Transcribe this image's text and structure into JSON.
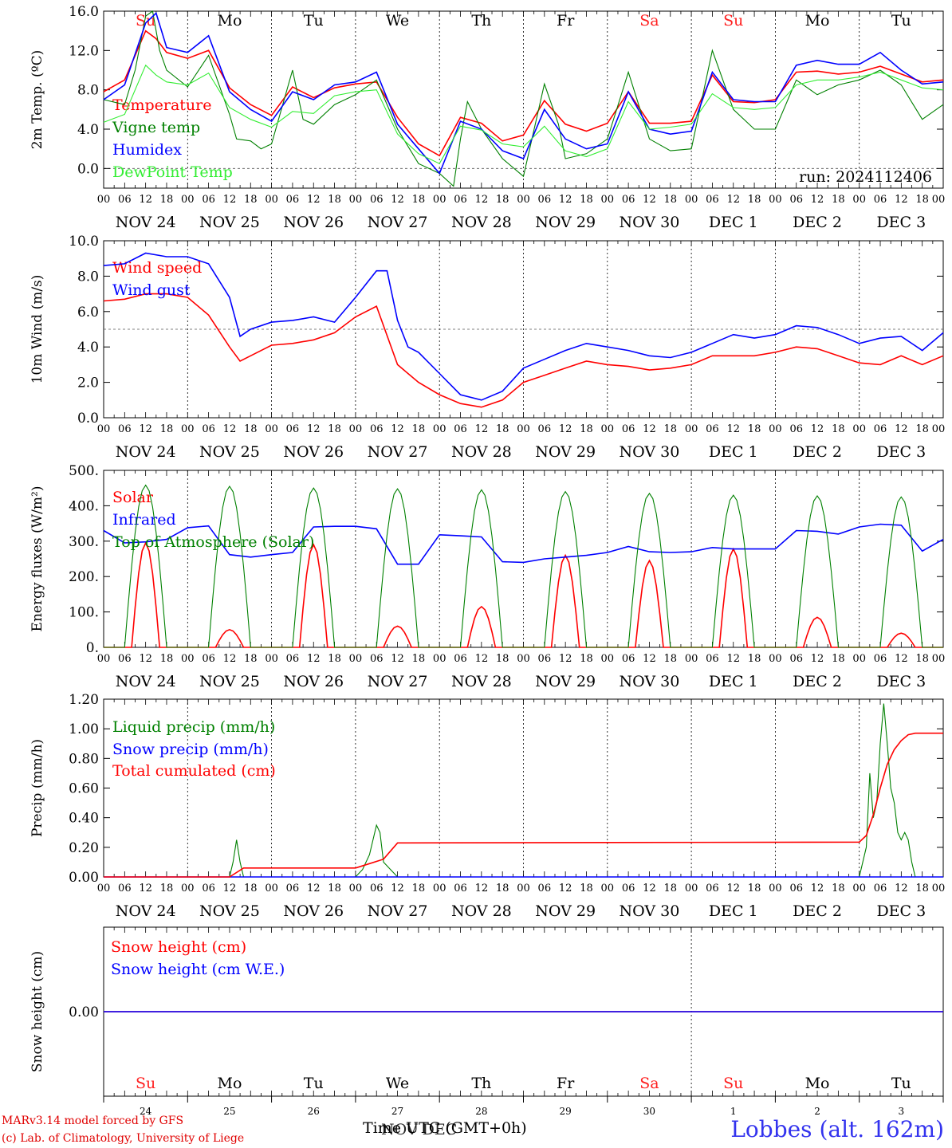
{
  "chart_data": [
    {
      "type": "line",
      "ylabel": "2m Temp. (ºC)",
      "ylim": [
        -2,
        16
      ],
      "yticks": [
        "16.0",
        "12.0",
        "8.0",
        "4.0",
        "0.0"
      ],
      "ytick_values": [
        16,
        12,
        8,
        4,
        0
      ],
      "ref_line": 0,
      "run_label": "run: 2024112406",
      "weekdays": [
        {
          "label": "Su",
          "color": "#ff2020"
        },
        {
          "label": "Mo",
          "color": "#000000"
        },
        {
          "label": "Tu",
          "color": "#000000"
        },
        {
          "label": "We",
          "color": "#000000"
        },
        {
          "label": "Th",
          "color": "#000000"
        },
        {
          "label": "Fr",
          "color": "#000000"
        },
        {
          "label": "Sa",
          "color": "#ff2020"
        },
        {
          "label": "Su",
          "color": "#ff2020"
        },
        {
          "label": "Mo",
          "color": "#000000"
        },
        {
          "label": "Tu",
          "color": "#000000"
        }
      ],
      "series": [
        {
          "name": "Temperature",
          "color": "#ff0000",
          "x": [
            0,
            6,
            12,
            15,
            18,
            24,
            30,
            36,
            42,
            48,
            54,
            60,
            66,
            72,
            78,
            84,
            90,
            96,
            102,
            108,
            114,
            120,
            126,
            132,
            138,
            144,
            150,
            156,
            162,
            168,
            174,
            180,
            186,
            192,
            198,
            204,
            210,
            216,
            222,
            228,
            234,
            240
          ],
          "values": [
            7.8,
            9.0,
            14.0,
            13.2,
            11.8,
            11.2,
            12.0,
            8.2,
            6.5,
            5.4,
            8.3,
            7.2,
            8.2,
            8.6,
            8.8,
            5.2,
            2.5,
            1.3,
            5.2,
            4.6,
            2.8,
            3.4,
            6.9,
            4.5,
            3.8,
            4.6,
            7.8,
            4.6,
            4.6,
            4.8,
            9.5,
            6.8,
            6.7,
            7.0,
            9.8,
            9.9,
            9.6,
            9.8,
            10.4,
            9.6,
            8.8,
            9.0
          ]
        },
        {
          "name": "Vigne temp",
          "color": "#008000",
          "x": [
            0,
            6,
            9,
            12,
            14,
            16,
            18,
            24,
            30,
            36,
            38,
            42,
            45,
            48,
            54,
            57,
            60,
            66,
            72,
            78,
            84,
            90,
            96,
            100,
            102,
            104,
            108,
            114,
            120,
            126,
            130,
            132,
            138,
            144,
            150,
            156,
            162,
            168,
            174,
            180,
            186,
            192,
            198,
            204,
            210,
            216,
            222,
            228,
            234,
            240
          ],
          "values": [
            7.0,
            6.5,
            10.0,
            15.5,
            16.0,
            12.0,
            10.0,
            8.3,
            11.5,
            5.5,
            3.0,
            2.8,
            2.0,
            2.5,
            10.0,
            5.0,
            4.5,
            6.5,
            7.5,
            9.0,
            4.0,
            0.5,
            -0.5,
            -1.8,
            3.0,
            6.8,
            4.0,
            1.0,
            -0.8,
            8.6,
            4.5,
            1.0,
            1.5,
            3.0,
            9.8,
            3.0,
            1.8,
            2.0,
            12.0,
            6.0,
            4.0,
            4.0,
            9.0,
            7.5,
            8.5,
            9.0,
            10.0,
            8.5,
            5.0,
            6.5
          ]
        },
        {
          "name": "Humidex",
          "color": "#0000ff",
          "x": [
            0,
            6,
            12,
            15,
            18,
            24,
            30,
            36,
            42,
            48,
            54,
            60,
            66,
            72,
            78,
            84,
            90,
            96,
            102,
            108,
            114,
            120,
            126,
            132,
            138,
            144,
            150,
            156,
            162,
            168,
            174,
            180,
            186,
            192,
            198,
            204,
            210,
            216,
            222,
            228,
            234,
            240
          ],
          "values": [
            7.0,
            8.5,
            14.8,
            15.8,
            12.3,
            11.8,
            13.5,
            7.8,
            6.0,
            4.8,
            7.8,
            7.0,
            8.5,
            8.8,
            9.8,
            4.5,
            2.0,
            -0.5,
            4.8,
            4.0,
            1.8,
            1.0,
            6.0,
            3.0,
            2.0,
            2.5,
            7.8,
            4.0,
            3.5,
            3.8,
            9.8,
            7.0,
            6.8,
            6.8,
            10.5,
            11.0,
            10.6,
            10.6,
            11.8,
            10.0,
            8.6,
            8.8
          ]
        },
        {
          "name": "DewPoint Temp",
          "color": "#33ee33",
          "x": [
            0,
            6,
            12,
            15,
            18,
            24,
            30,
            36,
            42,
            48,
            54,
            60,
            66,
            72,
            78,
            84,
            90,
            96,
            102,
            108,
            114,
            120,
            126,
            132,
            138,
            144,
            150,
            156,
            162,
            168,
            174,
            180,
            186,
            192,
            198,
            204,
            210,
            216,
            222,
            228,
            234,
            240
          ],
          "values": [
            4.7,
            5.5,
            10.5,
            9.5,
            8.8,
            8.5,
            9.7,
            6.2,
            5.0,
            4.2,
            5.8,
            5.6,
            7.4,
            7.8,
            8.0,
            3.5,
            1.5,
            0.5,
            4.3,
            3.9,
            2.5,
            2.2,
            4.3,
            1.8,
            1.2,
            2.0,
            6.8,
            4.0,
            4.2,
            4.5,
            7.6,
            6.2,
            6.0,
            6.2,
            8.5,
            9.0,
            9.0,
            9.3,
            9.8,
            9.0,
            8.2,
            8.0
          ]
        }
      ]
    },
    {
      "type": "line",
      "ylabel": "10m Wind (m/s)",
      "ylim": [
        0,
        10
      ],
      "yticks": [
        "10.0",
        "8.0",
        "6.0",
        "4.0",
        "2.0",
        "0.0"
      ],
      "ytick_values": [
        10,
        8,
        6,
        4,
        2,
        0
      ],
      "ref_line": 5,
      "series": [
        {
          "name": "Wind speed",
          "color": "#ff0000",
          "x": [
            0,
            6,
            12,
            18,
            24,
            30,
            36,
            39,
            42,
            48,
            54,
            60,
            66,
            72,
            78,
            84,
            87,
            90,
            96,
            102,
            108,
            114,
            120,
            126,
            132,
            138,
            144,
            150,
            156,
            162,
            168,
            174,
            180,
            186,
            192,
            198,
            204,
            210,
            216,
            222,
            228,
            234,
            240
          ],
          "values": [
            6.6,
            6.7,
            7.0,
            7.0,
            6.8,
            5.8,
            4.0,
            3.2,
            3.5,
            4.1,
            4.2,
            4.4,
            4.8,
            5.7,
            6.3,
            3.0,
            2.5,
            2.0,
            1.3,
            0.8,
            0.6,
            1.0,
            2.0,
            2.4,
            2.8,
            3.2,
            3.0,
            2.9,
            2.7,
            2.8,
            3.0,
            3.5,
            3.5,
            3.5,
            3.7,
            4.0,
            3.9,
            3.5,
            3.1,
            3.0,
            3.5,
            3.0,
            3.5
          ]
        },
        {
          "name": "Wind gust",
          "color": "#0000ff",
          "x": [
            0,
            6,
            12,
            18,
            24,
            30,
            36,
            39,
            42,
            48,
            54,
            60,
            66,
            72,
            78,
            81,
            84,
            87,
            90,
            96,
            102,
            108,
            114,
            120,
            126,
            132,
            138,
            144,
            150,
            156,
            162,
            168,
            174,
            180,
            186,
            192,
            198,
            204,
            210,
            216,
            222,
            228,
            234,
            240
          ],
          "values": [
            8.6,
            8.7,
            9.3,
            9.1,
            9.1,
            8.7,
            6.8,
            4.6,
            5.0,
            5.4,
            5.5,
            5.7,
            5.4,
            6.8,
            8.3,
            8.3,
            5.5,
            4.0,
            3.7,
            2.5,
            1.3,
            1.0,
            1.5,
            2.8,
            3.3,
            3.8,
            4.2,
            4.0,
            3.8,
            3.5,
            3.4,
            3.7,
            4.2,
            4.7,
            4.5,
            4.7,
            5.2,
            5.1,
            4.7,
            4.2,
            4.5,
            4.6,
            3.8,
            4.8
          ]
        }
      ]
    },
    {
      "type": "line",
      "ylabel": "Energy fluxes (W/m²)",
      "ylim": [
        0,
        500
      ],
      "yticks": [
        "500.",
        "400.",
        "300.",
        "200.",
        "100.",
        "0."
      ],
      "ytick_values": [
        500,
        400,
        300,
        200,
        100,
        0
      ],
      "series": [
        {
          "name": "Solar",
          "color": "#ff0000",
          "peaks": [
            295,
            50,
            290,
            60,
            115,
            260,
            245,
            278,
            85,
            40
          ]
        },
        {
          "name": "Infrared",
          "color": "#0000ff",
          "x": [
            0,
            6,
            12,
            18,
            24,
            30,
            36,
            42,
            48,
            54,
            60,
            66,
            72,
            78,
            84,
            90,
            96,
            102,
            108,
            114,
            120,
            126,
            132,
            138,
            144,
            150,
            156,
            162,
            168,
            174,
            180,
            186,
            192,
            198,
            204,
            210,
            216,
            222,
            228,
            234,
            240
          ],
          "values": [
            330,
            295,
            298,
            305,
            338,
            343,
            262,
            255,
            262,
            268,
            340,
            342,
            342,
            335,
            235,
            235,
            318,
            315,
            312,
            242,
            240,
            250,
            255,
            260,
            268,
            285,
            270,
            268,
            270,
            282,
            278,
            278,
            278,
            330,
            328,
            320,
            340,
            348,
            345,
            272,
            305
          ]
        },
        {
          "name": "Top of Atmosphere (Solar)",
          "color": "#008000",
          "peaks": [
            458,
            455,
            450,
            448,
            445,
            440,
            435,
            430,
            428,
            425
          ]
        }
      ]
    },
    {
      "type": "line",
      "ylabel": "Precip (mm/h)",
      "ylim": [
        0,
        1.2
      ],
      "yticks": [
        "1.20",
        "1.00",
        "0.80",
        "0.60",
        "0.40",
        "0.20",
        "0.00"
      ],
      "ytick_values": [
        1.2,
        1.0,
        0.8,
        0.6,
        0.4,
        0.2,
        0.0
      ],
      "series": [
        {
          "name": "Liquid precip (mm/h)",
          "color": "#008000",
          "x": [
            0,
            36,
            37,
            38,
            39,
            40,
            42,
            72,
            74,
            76,
            78,
            79,
            80,
            82,
            84,
            216,
            218,
            219,
            220,
            221,
            222,
            223,
            224,
            225,
            226,
            227,
            228,
            229,
            230,
            231,
            232,
            234,
            240
          ],
          "values": [
            0,
            0,
            0.1,
            0.25,
            0.1,
            0,
            0,
            0,
            0.05,
            0.15,
            0.35,
            0.3,
            0.1,
            0.05,
            0,
            0,
            0.2,
            0.7,
            0.4,
            0.5,
            0.9,
            1.17,
            0.9,
            0.6,
            0.5,
            0.3,
            0.25,
            0.3,
            0.25,
            0.1,
            0.0,
            0,
            0
          ]
        },
        {
          "name": "Snow precip (mm/h)",
          "color": "#0000ff",
          "x": [
            0,
            240
          ],
          "values": [
            0,
            0
          ]
        },
        {
          "name": "Total cumulated (cm)",
          "color": "#ff0000",
          "x": [
            0,
            36,
            40,
            72,
            76,
            80,
            84,
            216,
            218,
            220,
            222,
            224,
            226,
            228,
            230,
            232,
            234,
            240
          ],
          "values": [
            0,
            0,
            0.06,
            0.06,
            0.09,
            0.12,
            0.23,
            0.235,
            0.28,
            0.42,
            0.6,
            0.76,
            0.86,
            0.92,
            0.96,
            0.97,
            0.97,
            0.97
          ]
        }
      ]
    },
    {
      "type": "line",
      "ylabel": "Snow height (cm)",
      "ylim": [
        -1,
        1
      ],
      "yticks": [
        "0.00"
      ],
      "ytick_values": [
        0
      ],
      "series": [
        {
          "name": "Snow height (cm)",
          "color": "#ff0000",
          "x": [
            0,
            240
          ],
          "values": [
            0,
            0
          ]
        },
        {
          "name": "Snow height (cm W.E.)",
          "color": "#0000ff",
          "x": [
            0,
            240
          ],
          "values": [
            0,
            0
          ]
        }
      ],
      "weekdays": [
        {
          "label": "Su",
          "color": "#ff2020"
        },
        {
          "label": "Mo",
          "color": "#000000"
        },
        {
          "label": "Tu",
          "color": "#000000"
        },
        {
          "label": "We",
          "color": "#000000"
        },
        {
          "label": "Th",
          "color": "#000000"
        },
        {
          "label": "Fr",
          "color": "#000000"
        },
        {
          "label": "Sa",
          "color": "#ff2020"
        },
        {
          "label": "Su",
          "color": "#ff2020"
        },
        {
          "label": "Mo",
          "color": "#000000"
        },
        {
          "label": "Tu",
          "color": "#000000"
        }
      ],
      "day_numbers": [
        "24",
        "25",
        "26",
        "27",
        "28",
        "29",
        "30",
        "1",
        "2",
        "3"
      ]
    }
  ],
  "x_axis": {
    "hour_ticks": [
      "00",
      "06",
      "12",
      "18"
    ],
    "final_tick": "00",
    "date_labels": [
      "NOV 24",
      "NOV 25",
      "NOV 26",
      "NOV 27",
      "NOV 28",
      "NOV 29",
      "NOV 30",
      "DEC  1",
      "DEC  2",
      "DEC  3"
    ],
    "xlabel": "Time UTC (GMT+0h)",
    "overlap_text": "NOV DEC"
  },
  "footer": {
    "model": "MARv3.14 model forced by GFS",
    "lab": "(c) Lab. of Climatology, University of Liege",
    "station": "Lobbes (alt. 162m)"
  }
}
